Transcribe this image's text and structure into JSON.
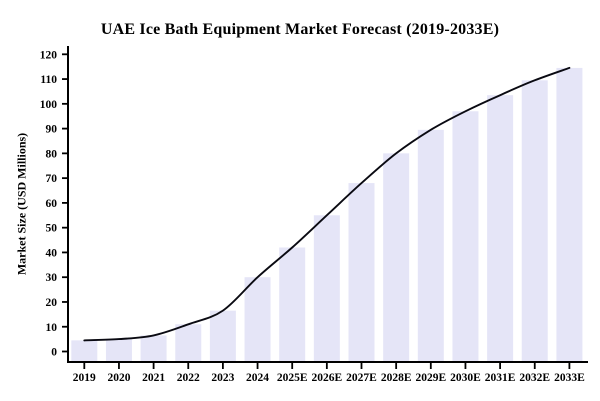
{
  "chart_data": {
    "type": "bar",
    "title": "UAE Ice Bath Equipment Market Forecast (2019-2033E)",
    "ylabel": "Market Size (USD Millions)",
    "xlabel": "",
    "categories": [
      "2019",
      "2020",
      "2021",
      "2022",
      "2023",
      "2024",
      "2025E",
      "2026E",
      "2027E",
      "2028E",
      "2029E",
      "2030E",
      "2031E",
      "2032E",
      "2033E"
    ],
    "series": [
      {
        "name": "Market Size",
        "type": "bar",
        "values": [
          4.5,
          5,
          6.5,
          11,
          16.5,
          30,
          42,
          55,
          68,
          80,
          89.5,
          97,
          103.5,
          109.5,
          114.5
        ]
      },
      {
        "name": "Trend",
        "type": "line-smooth",
        "values": [
          4.5,
          5,
          6.5,
          11,
          16.5,
          30,
          42,
          55,
          68,
          80,
          89.5,
          97,
          103.5,
          109.5,
          114.5
        ]
      }
    ],
    "ylim": [
      0,
      120
    ],
    "ytick_step": 10,
    "yticks": [
      0,
      10,
      20,
      30,
      40,
      50,
      60,
      70,
      80,
      90,
      100,
      110,
      120
    ],
    "grid": false,
    "legend_position": "none",
    "colors": {
      "bar_fill": "#E5E5F7",
      "line": "#0a0a12",
      "axis": "#000000",
      "background": "#FFFFFF",
      "text": "#000000"
    }
  }
}
